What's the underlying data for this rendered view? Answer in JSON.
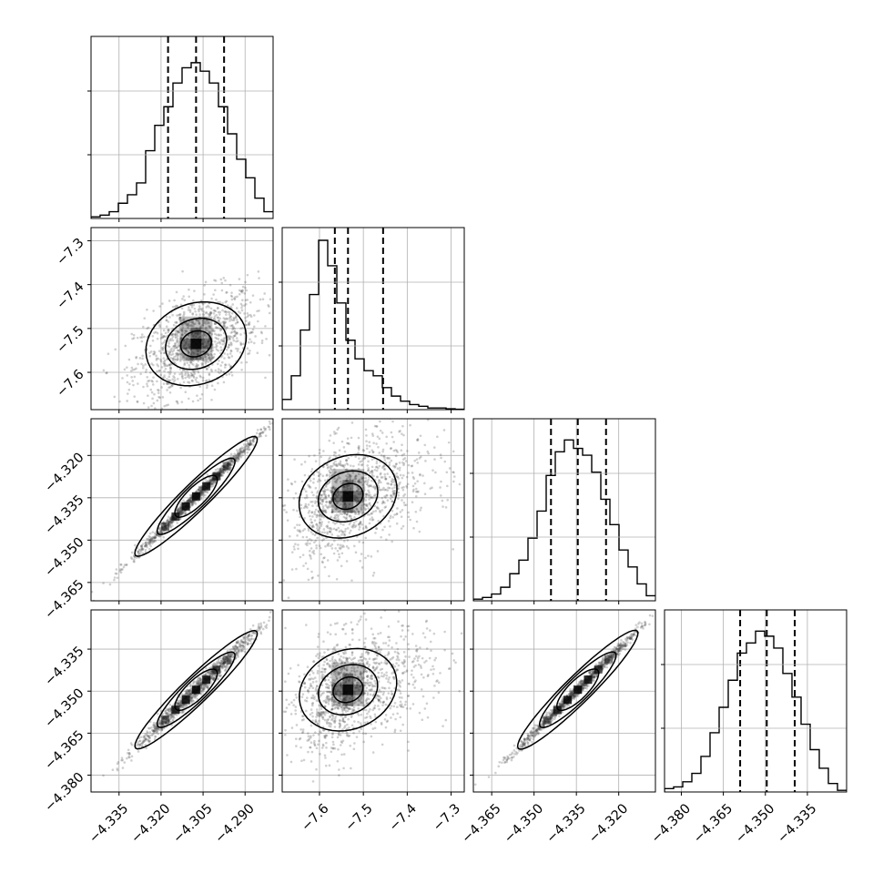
{
  "chart_data": {
    "type": "corner",
    "title": "",
    "parameters": [
      {
        "name": "",
        "range": [
          -4.345,
          -4.28
        ],
        "quantiles": [
          -4.3175,
          -4.3075,
          -4.2975
        ],
        "ticks": [
          -4.335,
          -4.32,
          -4.305,
          -4.29
        ],
        "tick_labels": [
          "−4.335",
          "−4.320",
          "−4.305",
          "−4.290"
        ]
      },
      {
        "name": "",
        "range": [
          -7.685,
          -7.27
        ],
        "quantiles": [
          -7.565,
          -7.535,
          -7.455
        ],
        "ticks": [
          -7.6,
          -7.5,
          -7.4,
          -7.3
        ],
        "tick_labels": [
          "−7.6",
          "−7.5",
          "−7.4",
          "−7.3"
        ]
      },
      {
        "name": "",
        "range": [
          -4.3715,
          -4.307
        ],
        "quantiles": [
          -4.344,
          -4.3345,
          -4.3245
        ],
        "ticks": [
          -4.365,
          -4.35,
          -4.335,
          -4.32
        ],
        "tick_labels": [
          "−4.365",
          "−4.350",
          "−4.335",
          "−4.320"
        ]
      },
      {
        "name": "",
        "range": [
          -4.386,
          -4.321
        ],
        "quantiles": [
          -4.359,
          -4.3495,
          -4.3395
        ],
        "ticks": [
          -4.38,
          -4.365,
          -4.35,
          -4.335
        ],
        "tick_labels": [
          "−4.380",
          "−4.365",
          "−4.350",
          "−4.335"
        ]
      }
    ],
    "histograms": [
      [
        0.01,
        0.02,
        0.04,
        0.09,
        0.14,
        0.21,
        0.4,
        0.55,
        0.66,
        0.8,
        0.89,
        0.92,
        0.87,
        0.8,
        0.66,
        0.5,
        0.35,
        0.24,
        0.12,
        0.04
      ],
      [
        0.06,
        0.2,
        0.47,
        0.68,
        1.0,
        0.85,
        0.63,
        0.41,
        0.3,
        0.23,
        0.2,
        0.13,
        0.08,
        0.05,
        0.03,
        0.02,
        0.01,
        0.01,
        0.005,
        0.002
      ],
      [
        0.01,
        0.02,
        0.04,
        0.08,
        0.16,
        0.24,
        0.37,
        0.53,
        0.74,
        0.88,
        0.95,
        0.9,
        0.86,
        0.76,
        0.6,
        0.45,
        0.3,
        0.2,
        0.1,
        0.03
      ],
      [
        0.02,
        0.03,
        0.06,
        0.11,
        0.21,
        0.35,
        0.5,
        0.66,
        0.82,
        0.88,
        0.95,
        0.92,
        0.85,
        0.7,
        0.56,
        0.4,
        0.25,
        0.14,
        0.05,
        0.01
      ]
    ],
    "grid": true,
    "legend": "none"
  }
}
